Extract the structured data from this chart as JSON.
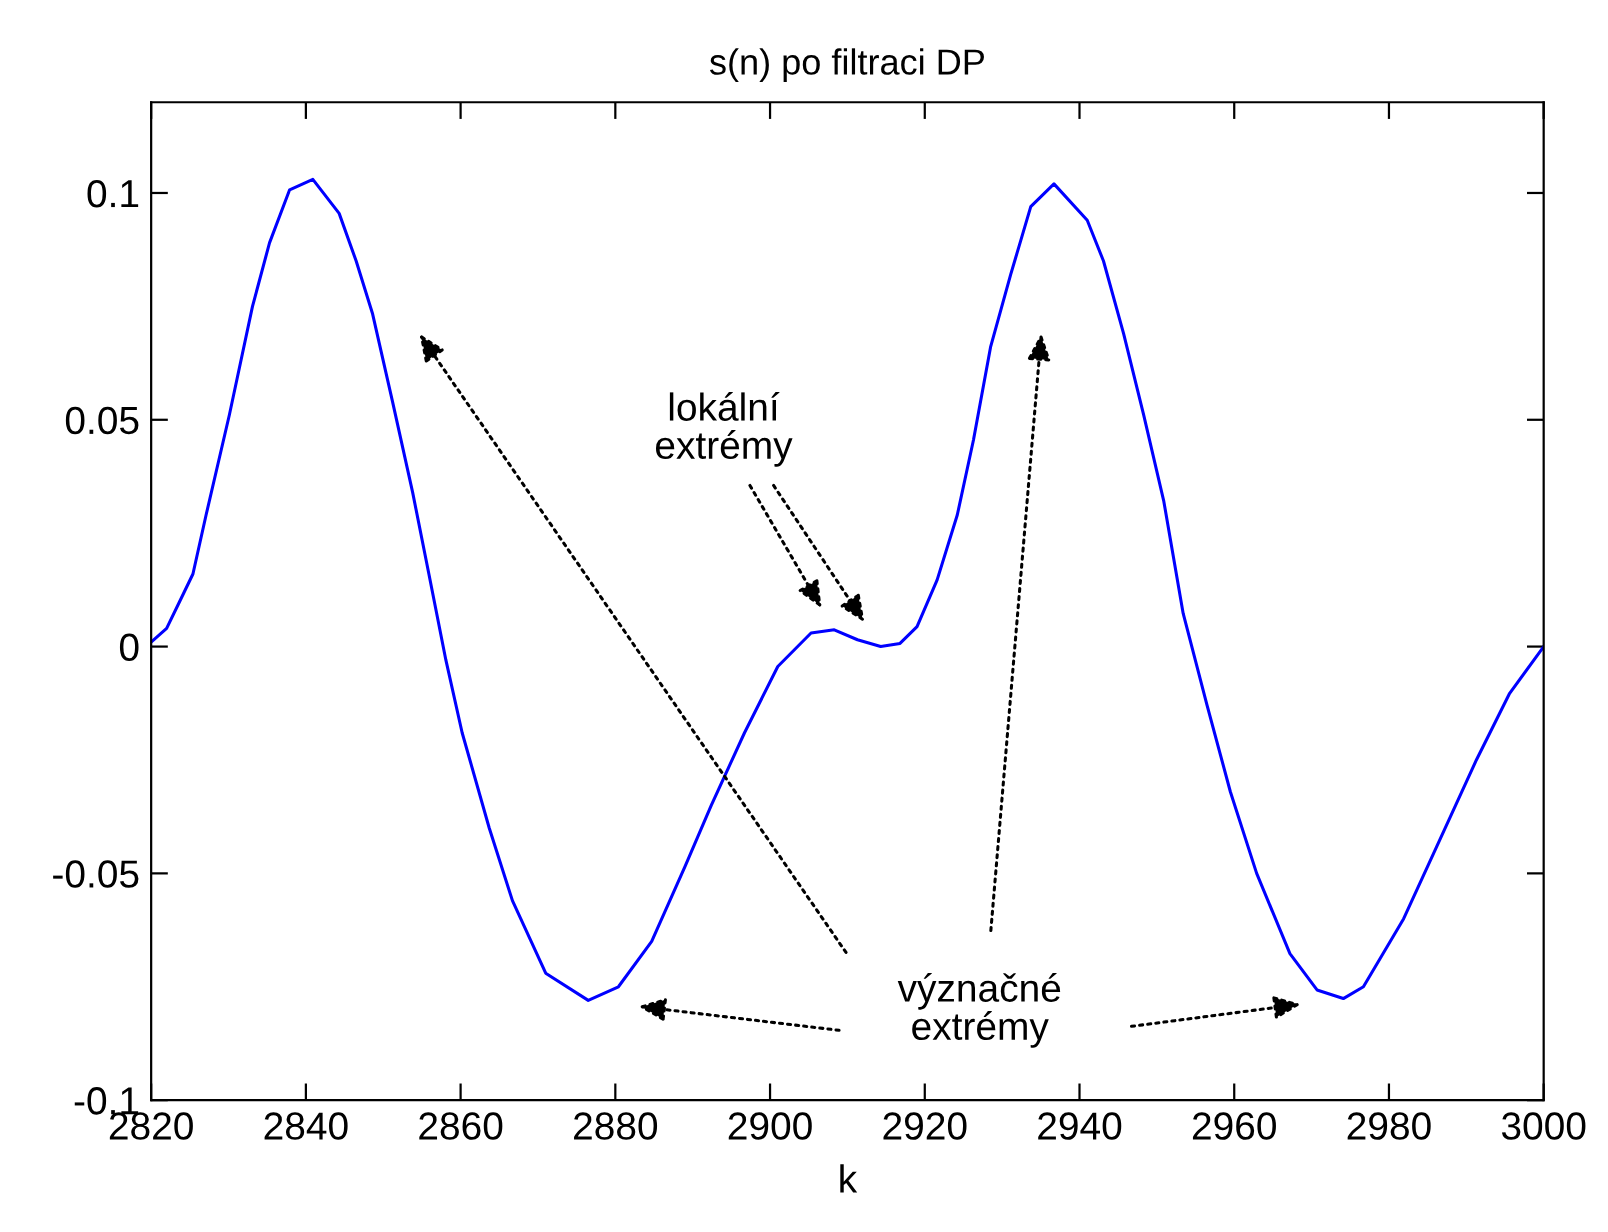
{
  "chart_data": {
    "type": "line",
    "title": "s(n) po filtraci DP",
    "xlabel": "k",
    "series": [
      {
        "color": "#0000ff",
        "x": [
          2820,
          2822,
          2823.7,
          2825.4,
          2827.1,
          2830.1,
          2833.1,
          2835.3,
          2837.9,
          2840.9,
          2844.3,
          2846.5,
          2848.6,
          2851.2,
          2853.8,
          2855.9,
          2858.1,
          2860.2,
          2863.7,
          2866.7,
          2871,
          2876.5,
          2880.4,
          2884.7,
          2889,
          2892.4,
          2896.7,
          2901,
          2905.3,
          2908.3,
          2911.3,
          2914.3,
          2916.8,
          2919,
          2921.6,
          2924.2,
          2926.3,
          2928.5,
          2931.1,
          2933.7,
          2936.7,
          2941,
          2943.1,
          2945.7,
          2948.3,
          2950.9,
          2953.4,
          2956.5,
          2959.5,
          2962.9,
          2967.2,
          2970.7,
          2974.1,
          2976.7,
          2981.9,
          2986.2,
          2991.3,
          2995.6,
          3000
        ],
        "values": [
          0.001,
          0.004,
          0.01,
          0.016,
          0.029,
          0.051,
          0.075,
          0.089,
          0.1007,
          0.103,
          0.0955,
          0.085,
          0.0735,
          0.054,
          0.034,
          0.016,
          -0.003,
          -0.019,
          -0.04,
          -0.056,
          -0.072,
          -0.078,
          -0.075,
          -0.065,
          -0.0485,
          -0.035,
          -0.019,
          -0.0044,
          0.003,
          0.0037,
          0.0015,
          0.0,
          0.0007,
          0.0044,
          0.0147,
          0.029,
          0.0456,
          0.066,
          0.082,
          0.097,
          0.102,
          0.094,
          0.085,
          0.069,
          0.051,
          0.032,
          0.0073,
          -0.013,
          -0.032,
          -0.05,
          -0.0677,
          -0.0757,
          -0.0776,
          -0.075,
          -0.06,
          -0.044,
          -0.025,
          -0.0103,
          0.0
        ]
      }
    ],
    "xlim": [
      2820,
      3000
    ],
    "xticks": [
      2820,
      2840,
      2860,
      2880,
      2900,
      2920,
      2940,
      2960,
      2980,
      3000
    ],
    "ylim": [
      -0.1,
      0.12
    ],
    "yticks": [
      -0.1,
      -0.05,
      0,
      0.05,
      0.1
    ],
    "annotations": [
      "lokální\nextrémy",
      "význačné\nextrémy"
    ],
    "grid": false,
    "legend": false,
    "marker": "none",
    "line_style": "solid"
  }
}
